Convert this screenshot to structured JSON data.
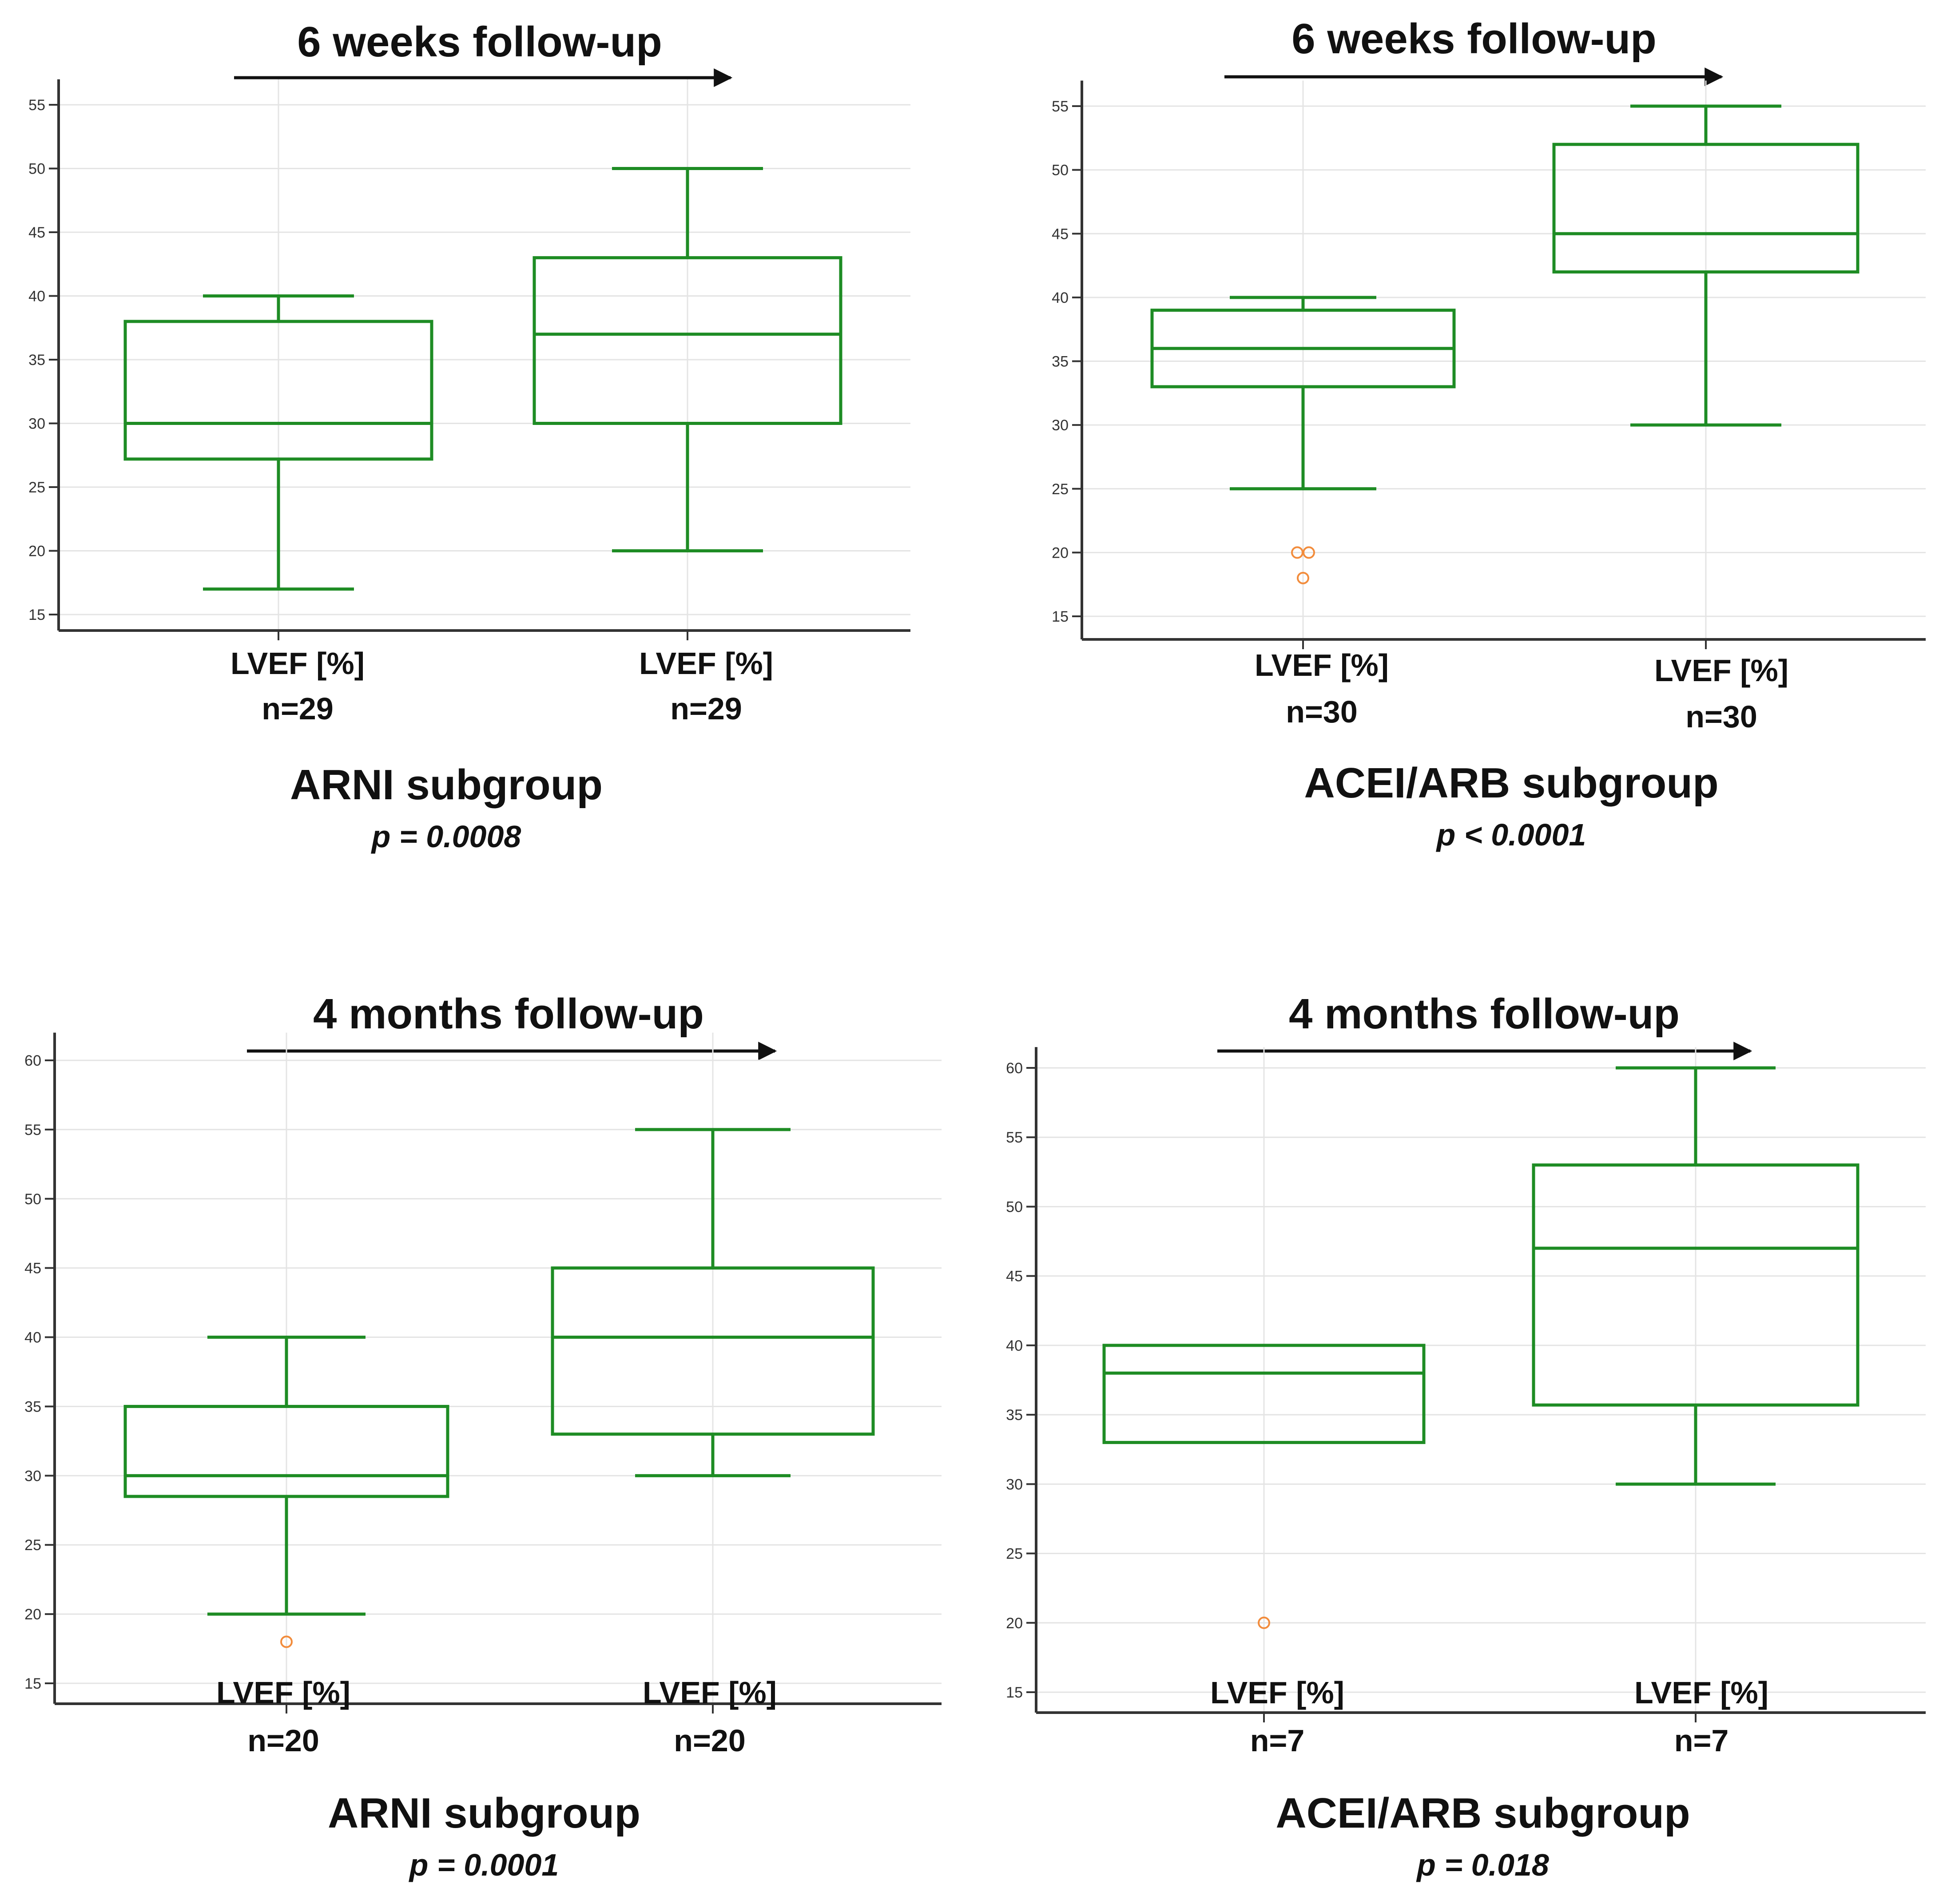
{
  "colors": {
    "box": "#1e8c24",
    "outlier": "#f28c3c",
    "axis": "#333333",
    "grid": "#e4e4e4",
    "text": "#111111"
  },
  "chart_data": [
    {
      "type": "box",
      "title": "6 weeks follow-up",
      "subgroup": "ARNI subgroup",
      "p_value": "p = 0.0008",
      "ylim": [
        14,
        57
      ],
      "yticks": [
        15,
        20,
        25,
        30,
        35,
        40,
        45,
        50,
        55
      ],
      "boxes": [
        {
          "label": "LVEF [%]",
          "n": "n=29",
          "min": 17,
          "q1": 27.2,
          "median": 30,
          "q3": 38,
          "max": 40,
          "outliers": []
        },
        {
          "label": "LVEF [%]",
          "n": "n=29",
          "min": 20,
          "q1": 30,
          "median": 37,
          "q3": 43,
          "max": 50,
          "outliers": []
        }
      ]
    },
    {
      "type": "box",
      "title": "6 weeks follow-up",
      "subgroup": "ACEI/ARB subgroup",
      "p_value": "p < 0.0001",
      "ylim": [
        13.5,
        57
      ],
      "yticks": [
        15,
        20,
        25,
        30,
        35,
        40,
        45,
        50,
        55
      ],
      "boxes": [
        {
          "label": "LVEF [%]",
          "n": "n=30",
          "min": 25,
          "q1": 33,
          "median": 36,
          "q3": 39,
          "max": 40,
          "outliers": [
            20,
            20,
            18
          ]
        },
        {
          "label": "LVEF [%]",
          "n": "n=30",
          "min": 30,
          "q1": 42,
          "median": 45,
          "q3": 52,
          "max": 55,
          "outliers": []
        }
      ]
    },
    {
      "type": "box",
      "title": "4 months follow-up",
      "subgroup": "ARNI subgroup",
      "p_value": "p = 0.0001",
      "ylim": [
        13.5,
        62
      ],
      "yticks": [
        15,
        20,
        25,
        30,
        35,
        40,
        45,
        50,
        55,
        60
      ],
      "boxes": [
        {
          "label": "LVEF [%]",
          "n": "n=20",
          "min": 20,
          "q1": 28.5,
          "median": 30,
          "q3": 35,
          "max": 40,
          "outliers": [
            18
          ]
        },
        {
          "label": "LVEF [%]",
          "n": "n=20",
          "min": 30,
          "q1": 33,
          "median": 40,
          "q3": 45,
          "max": 55,
          "outliers": []
        }
      ]
    },
    {
      "type": "box",
      "title": "4 months follow-up",
      "subgroup": "ACEI/ARB subgroup",
      "p_value": "p = 0.018",
      "ylim": [
        13.5,
        61.5
      ],
      "yticks": [
        15,
        20,
        25,
        30,
        35,
        40,
        45,
        50,
        55,
        60
      ],
      "boxes": [
        {
          "label": "LVEF [%]",
          "n": "n=7",
          "min": 33,
          "q1": 33,
          "median": 38,
          "q3": 40,
          "max": 40,
          "outliers": [
            20
          ]
        },
        {
          "label": "LVEF [%]",
          "n": "n=7",
          "min": 30,
          "q1": 35.7,
          "median": 47,
          "q3": 53,
          "max": 60,
          "outliers": []
        }
      ]
    }
  ]
}
